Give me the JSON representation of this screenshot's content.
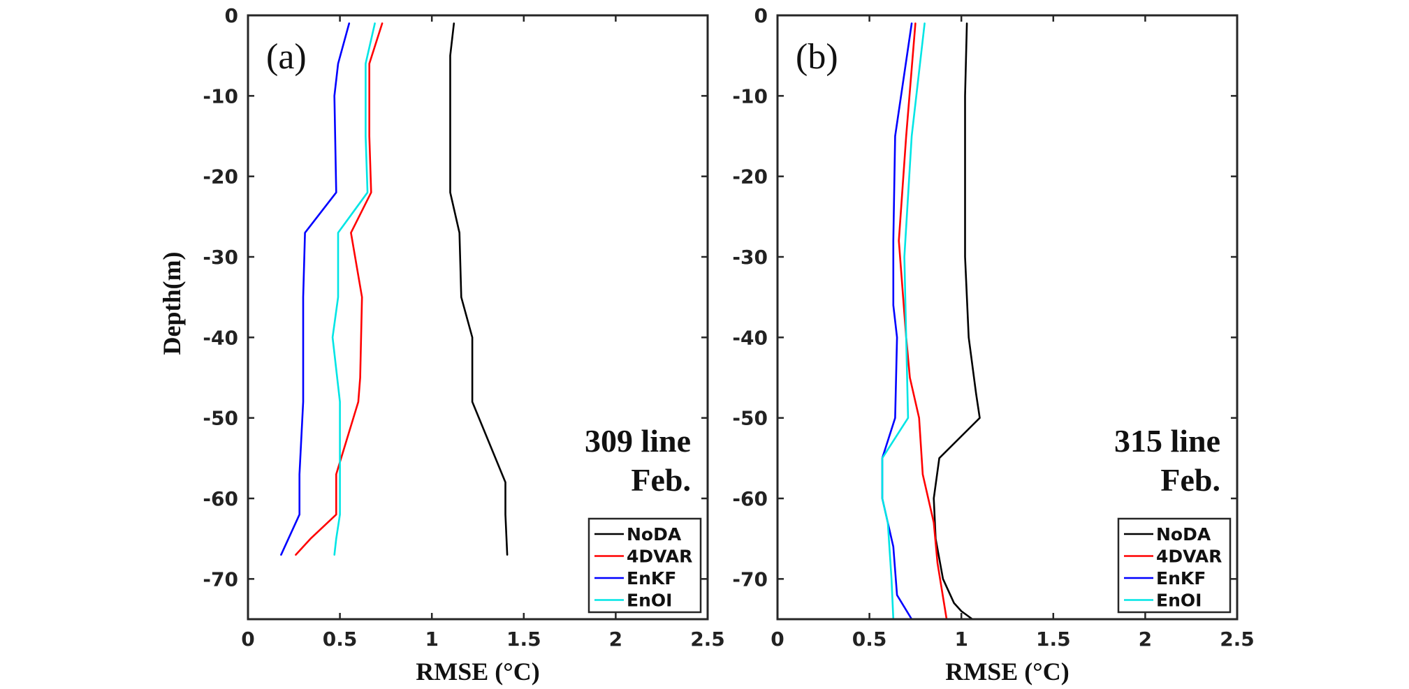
{
  "chart_data": [
    {
      "type": "line",
      "panel_label": "(a)",
      "annotation_lines": [
        "309 line",
        "Feb."
      ],
      "xlabel": "RMSE (°C)",
      "ylabel": "Depth(m)",
      "xlim": [
        0,
        2.5
      ],
      "ylim": [
        -75,
        0
      ],
      "xticks": [
        "0",
        "0.5",
        "1",
        "1.5",
        "2",
        "2.5"
      ],
      "xtick_values": [
        0,
        0.5,
        1,
        1.5,
        2,
        2.5
      ],
      "yticks": [
        "0",
        "-10",
        "-20",
        "-30",
        "-40",
        "-50",
        "-60",
        "-70"
      ],
      "ytick_values": [
        0,
        -10,
        -20,
        -30,
        -40,
        -50,
        -60,
        -70
      ],
      "legend_position": "bottom-right",
      "series": [
        {
          "name": "NoDA",
          "color": "#000000",
          "points": [
            [
              1.12,
              -1
            ],
            [
              1.1,
              -5
            ],
            [
              1.1,
              -22
            ],
            [
              1.15,
              -27
            ],
            [
              1.16,
              -35
            ],
            [
              1.22,
              -40
            ],
            [
              1.22,
              -48
            ],
            [
              1.4,
              -58
            ],
            [
              1.4,
              -62
            ],
            [
              1.41,
              -67
            ]
          ]
        },
        {
          "name": "4DVAR",
          "color": "#ff0000",
          "points": [
            [
              0.73,
              -1
            ],
            [
              0.66,
              -6
            ],
            [
              0.66,
              -15
            ],
            [
              0.67,
              -22
            ],
            [
              0.56,
              -27
            ],
            [
              0.62,
              -35
            ],
            [
              0.61,
              -45
            ],
            [
              0.6,
              -48
            ],
            [
              0.48,
              -57
            ],
            [
              0.48,
              -62
            ],
            [
              0.34,
              -65
            ],
            [
              0.26,
              -67
            ]
          ]
        },
        {
          "name": "EnKF",
          "color": "#0000ff",
          "points": [
            [
              0.55,
              -1
            ],
            [
              0.49,
              -6
            ],
            [
              0.47,
              -10
            ],
            [
              0.48,
              -22
            ],
            [
              0.31,
              -27
            ],
            [
              0.3,
              -35
            ],
            [
              0.3,
              -48
            ],
            [
              0.28,
              -57
            ],
            [
              0.28,
              -62
            ],
            [
              0.22,
              -65
            ],
            [
              0.18,
              -67
            ]
          ]
        },
        {
          "name": "EnOI",
          "color": "#00e5e5",
          "points": [
            [
              0.69,
              -1
            ],
            [
              0.64,
              -6
            ],
            [
              0.64,
              -15
            ],
            [
              0.65,
              -22
            ],
            [
              0.49,
              -27
            ],
            [
              0.49,
              -35
            ],
            [
              0.46,
              -40
            ],
            [
              0.5,
              -48
            ],
            [
              0.5,
              -57
            ],
            [
              0.5,
              -62
            ],
            [
              0.48,
              -65
            ],
            [
              0.47,
              -67
            ]
          ]
        }
      ]
    },
    {
      "type": "line",
      "panel_label": "(b)",
      "annotation_lines": [
        "315 line",
        "Feb."
      ],
      "xlabel": "RMSE (°C)",
      "ylabel": "",
      "xlim": [
        0,
        2.5
      ],
      "ylim": [
        -75,
        0
      ],
      "xticks": [
        "0",
        "0.5",
        "1",
        "1.5",
        "2",
        "2.5"
      ],
      "xtick_values": [
        0,
        0.5,
        1,
        1.5,
        2,
        2.5
      ],
      "yticks": [
        "0",
        "-10",
        "-20",
        "-30",
        "-40",
        "-50",
        "-60",
        "-70"
      ],
      "ytick_values": [
        0,
        -10,
        -20,
        -30,
        -40,
        -50,
        -60,
        -70
      ],
      "legend_position": "bottom-right",
      "series": [
        {
          "name": "NoDA",
          "color": "#000000",
          "points": [
            [
              1.03,
              -1
            ],
            [
              1.02,
              -10
            ],
            [
              1.02,
              -30
            ],
            [
              1.04,
              -40
            ],
            [
              1.08,
              -47
            ],
            [
              1.1,
              -50
            ],
            [
              0.88,
              -55
            ],
            [
              0.85,
              -60
            ],
            [
              0.86,
              -65
            ],
            [
              0.9,
              -70
            ],
            [
              0.96,
              -73
            ],
            [
              1.0,
              -74
            ],
            [
              1.06,
              -75
            ]
          ]
        },
        {
          "name": "4DVAR",
          "color": "#ff0000",
          "points": [
            [
              0.75,
              -1
            ],
            [
              0.7,
              -15
            ],
            [
              0.66,
              -28
            ],
            [
              0.7,
              -40
            ],
            [
              0.72,
              -45
            ],
            [
              0.77,
              -50
            ],
            [
              0.79,
              -57
            ],
            [
              0.85,
              -63
            ],
            [
              0.87,
              -68
            ],
            [
              0.92,
              -75
            ]
          ]
        },
        {
          "name": "EnKF",
          "color": "#0000ff",
          "points": [
            [
              0.73,
              -1
            ],
            [
              0.64,
              -15
            ],
            [
              0.63,
              -28
            ],
            [
              0.63,
              -36
            ],
            [
              0.65,
              -40
            ],
            [
              0.64,
              -50
            ],
            [
              0.57,
              -55
            ],
            [
              0.57,
              -60
            ],
            [
              0.63,
              -66
            ],
            [
              0.65,
              -72
            ],
            [
              0.73,
              -75
            ]
          ]
        },
        {
          "name": "EnOI",
          "color": "#00e5e5",
          "points": [
            [
              0.8,
              -1
            ],
            [
              0.73,
              -15
            ],
            [
              0.69,
              -30
            ],
            [
              0.7,
              -40
            ],
            [
              0.71,
              -50
            ],
            [
              0.57,
              -55
            ],
            [
              0.57,
              -60
            ],
            [
              0.6,
              -63
            ],
            [
              0.62,
              -70
            ],
            [
              0.63,
              -75
            ]
          ]
        }
      ]
    }
  ]
}
